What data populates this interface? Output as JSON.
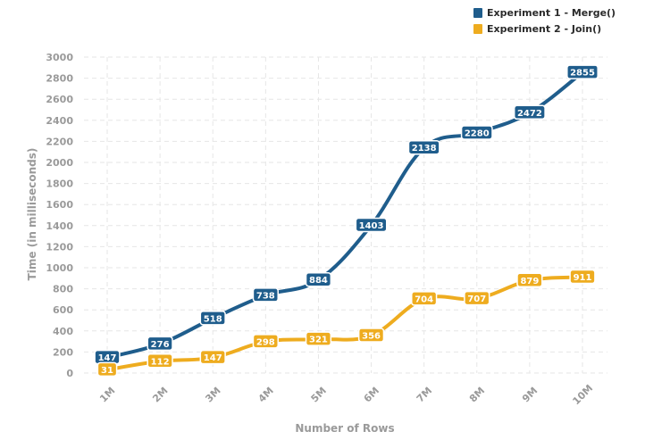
{
  "chart_data": {
    "type": "line",
    "categories": [
      "1M",
      "2M",
      "3M",
      "4M",
      "5M",
      "6M",
      "7M",
      "8M",
      "9M",
      "10M"
    ],
    "series": [
      {
        "name": "Experiment 1 - Merge()",
        "color": "#1f5d8c",
        "values": [
          147,
          276,
          518,
          738,
          884,
          1403,
          2138,
          2280,
          2472,
          2855
        ]
      },
      {
        "name": "Experiment 2 - Join()",
        "color": "#eeac1f",
        "values": [
          31,
          112,
          147,
          298,
          321,
          356,
          704,
          707,
          879,
          911
        ]
      }
    ],
    "title": "",
    "xlabel": "Number of Rows",
    "ylabel": "Time (in milliseconds)",
    "ylim": [
      0,
      3000
    ],
    "yticks": [
      0,
      200,
      400,
      600,
      800,
      1000,
      1200,
      1400,
      1600,
      1800,
      2000,
      2200,
      2400,
      2600,
      2800,
      3000
    ],
    "grid": true,
    "legend_position": "top-right",
    "data_labels": true
  },
  "colors": {
    "grid": "#e6e6e6",
    "axis_text": "#9a9a9a"
  }
}
